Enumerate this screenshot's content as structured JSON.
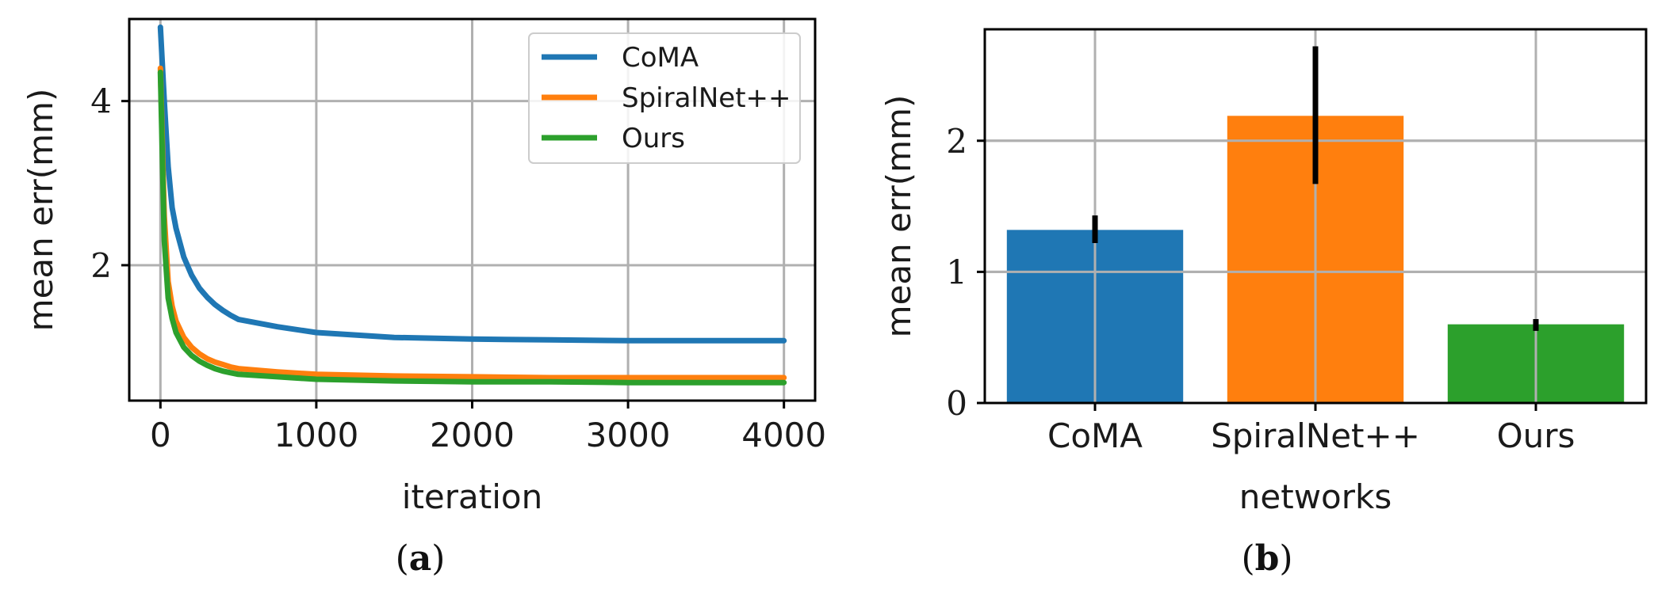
{
  "colors": {
    "CoMA": "#1f77b4",
    "SpiralNet++": "#ff7f0e",
    "Ours": "#2ca02c"
  },
  "chart_data": [
    {
      "type": "line",
      "panel_label": "a",
      "title": "",
      "xlabel": "iteration",
      "ylabel": "mean err(mm)",
      "xlim": [
        -200,
        4200
      ],
      "ylim": [
        0.35,
        5.0
      ],
      "xticks": [
        0,
        1000,
        2000,
        3000,
        4000
      ],
      "yticks": [
        2,
        4
      ],
      "grid": true,
      "legend_position": "top-right",
      "series": [
        {
          "name": "CoMA",
          "x": [
            0,
            25,
            50,
            75,
            100,
            150,
            200,
            250,
            300,
            350,
            400,
            450,
            500,
            750,
            1000,
            1500,
            2000,
            2500,
            3000,
            3500,
            4000
          ],
          "y": [
            4.9,
            4.0,
            3.2,
            2.7,
            2.45,
            2.1,
            1.88,
            1.72,
            1.61,
            1.52,
            1.45,
            1.39,
            1.34,
            1.25,
            1.18,
            1.12,
            1.1,
            1.09,
            1.08,
            1.08,
            1.08
          ]
        },
        {
          "name": "SpiralNet++",
          "x": [
            0,
            25,
            50,
            75,
            100,
            150,
            200,
            250,
            300,
            350,
            400,
            450,
            500,
            750,
            1000,
            1500,
            2000,
            2500,
            3000,
            3500,
            4000
          ],
          "y": [
            4.4,
            2.6,
            1.8,
            1.5,
            1.32,
            1.12,
            1.0,
            0.92,
            0.86,
            0.82,
            0.79,
            0.76,
            0.74,
            0.7,
            0.67,
            0.65,
            0.64,
            0.63,
            0.63,
            0.63,
            0.63
          ]
        },
        {
          "name": "Ours",
          "x": [
            0,
            25,
            50,
            75,
            100,
            150,
            200,
            250,
            300,
            350,
            400,
            450,
            500,
            750,
            1000,
            1500,
            2000,
            2500,
            3000,
            3500,
            4000
          ],
          "y": [
            4.35,
            2.3,
            1.6,
            1.35,
            1.18,
            1.0,
            0.9,
            0.83,
            0.78,
            0.74,
            0.71,
            0.69,
            0.67,
            0.64,
            0.61,
            0.59,
            0.58,
            0.58,
            0.57,
            0.57,
            0.57
          ]
        }
      ]
    },
    {
      "type": "bar",
      "panel_label": "b",
      "title": "",
      "xlabel": "networks",
      "ylabel": "mean err(mm)",
      "ylim": [
        0,
        2.85
      ],
      "yticks": [
        0,
        1,
        2
      ],
      "grid": true,
      "categories": [
        "CoMA",
        "SpiralNet++",
        "Ours"
      ],
      "values": [
        1.32,
        2.19,
        0.6
      ],
      "errors": [
        [
          1.22,
          1.43
        ],
        [
          1.67,
          2.72
        ],
        [
          0.55,
          0.64
        ]
      ]
    }
  ]
}
